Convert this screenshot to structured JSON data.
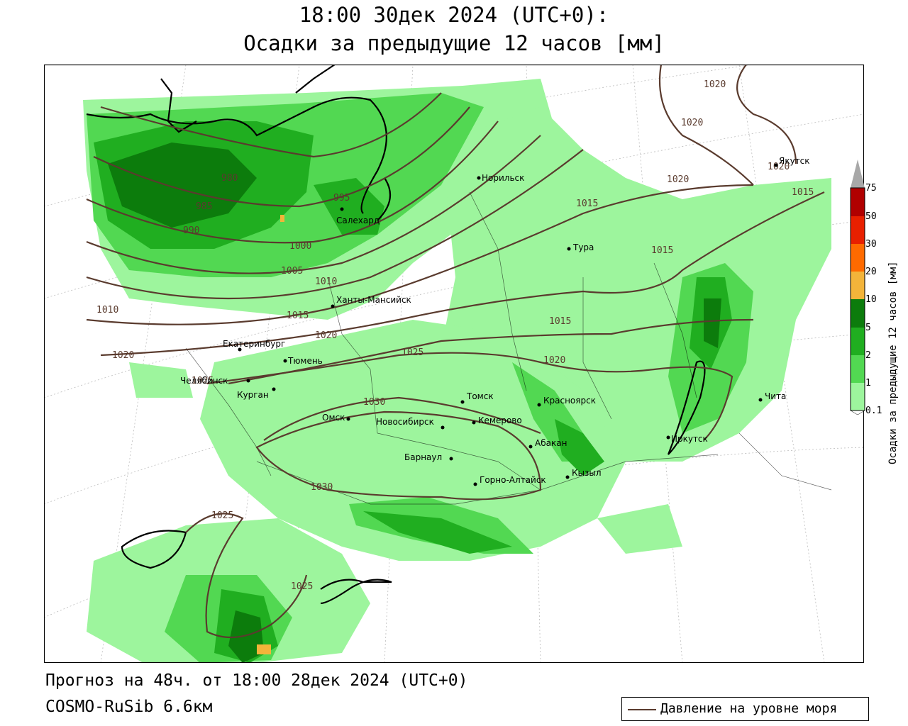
{
  "title": {
    "line1": "18:00 30дек 2024 (UTC+0):",
    "line2": "Осадки за предыдущие 12 часов [мм]"
  },
  "footer": {
    "forecast": "Прогноз на 48ч. от 18:00 28дек 2024 (UTC+0)",
    "model": "COSMO-RuSib 6.6км"
  },
  "legend": {
    "pressure_label": "Давление на уровне моря",
    "pressure_color": "#5a3b2e"
  },
  "colorbar": {
    "title": "Осадки за предыдущие 12 часов [мм]",
    "ticks": [
      "0.1",
      "1",
      "2",
      "5",
      "10",
      "20",
      "30",
      "50",
      "75"
    ],
    "colors": [
      "#9df59d",
      "#52d852",
      "#20ae20",
      "#0c7c0c",
      "#f3b43a",
      "#ff6a00",
      "#e82000",
      "#b00000",
      "#a8a8a8"
    ]
  },
  "cities": [
    {
      "name": "Норильск"
    },
    {
      "name": "Якутск"
    },
    {
      "name": "Салехард"
    },
    {
      "name": "Тура"
    },
    {
      "name": "Ханты-Мансийск"
    },
    {
      "name": "Екатеринбург"
    },
    {
      "name": "Тюмень"
    },
    {
      "name": "Челябинск"
    },
    {
      "name": "Курган"
    },
    {
      "name": "Омск"
    },
    {
      "name": "Новосибирск"
    },
    {
      "name": "Томск"
    },
    {
      "name": "Кемерово"
    },
    {
      "name": "Красноярск"
    },
    {
      "name": "Барнаул"
    },
    {
      "name": "Абакан"
    },
    {
      "name": "Иркутск"
    },
    {
      "name": "Чита"
    },
    {
      "name": "Горно-Алтайск"
    },
    {
      "name": "Кызыл"
    }
  ],
  "isobars": [
    "980",
    "985",
    "990",
    "995",
    "1000",
    "1005",
    "1010",
    "1010",
    "1015",
    "1015",
    "1015",
    "1015",
    "1015",
    "1020",
    "1020",
    "1020",
    "1020",
    "1020",
    "1020",
    "1025",
    "1025",
    "1025",
    "1025",
    "1030",
    "1030",
    "1020"
  ]
}
